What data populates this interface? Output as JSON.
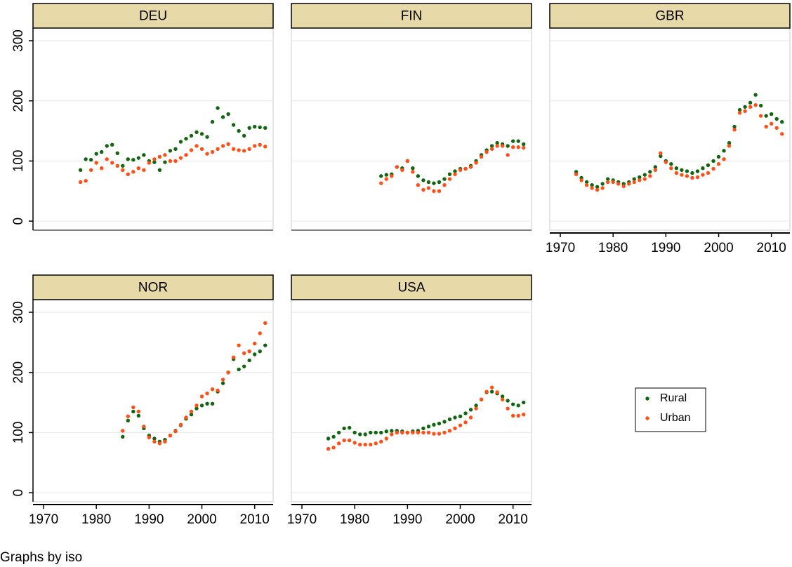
{
  "chart_data": [
    {
      "type": "scatter",
      "title": "DEU",
      "xlim": [
        1968,
        2013.5
      ],
      "ylim": [
        -15,
        321
      ],
      "xticks": [
        1970,
        1980,
        1990,
        2000,
        2010
      ],
      "yticks": [
        0,
        100,
        200,
        300
      ],
      "grid": true,
      "x": [
        1977,
        1978,
        1979,
        1980,
        1981,
        1982,
        1983,
        1984,
        1985,
        1986,
        1987,
        1988,
        1989,
        1990,
        1991,
        1992,
        1993,
        1994,
        1995,
        1996,
        1997,
        1998,
        1999,
        2000,
        2001,
        2002,
        2003,
        2004,
        2005,
        2006,
        2007,
        2008,
        2009,
        2010,
        2011,
        2012
      ],
      "series": [
        {
          "name": "Rural",
          "color": "#126612",
          "values": [
            85,
            103,
            102,
            112,
            115,
            125,
            127,
            113,
            92,
            103,
            102,
            105,
            110,
            100,
            98,
            85,
            98,
            117,
            120,
            132,
            137,
            142,
            148,
            145,
            140,
            165,
            188,
            173,
            178,
            160,
            150,
            142,
            155,
            157,
            156,
            155
          ]
        },
        {
          "name": "Urban",
          "color": "#ff4f14",
          "values": [
            65,
            67,
            85,
            97,
            88,
            103,
            97,
            92,
            85,
            78,
            82,
            88,
            85,
            97,
            103,
            107,
            110,
            100,
            100,
            105,
            110,
            118,
            125,
            120,
            112,
            115,
            120,
            125,
            128,
            120,
            118,
            117,
            120,
            125,
            127,
            124
          ]
        }
      ]
    },
    {
      "type": "scatter",
      "title": "FIN",
      "xlim": [
        1968,
        2013.5
      ],
      "ylim": [
        -15,
        321
      ],
      "xticks": [
        1970,
        1980,
        1990,
        2000,
        2010
      ],
      "yticks": [
        0,
        100,
        200,
        300
      ],
      "grid": true,
      "x": [
        1985,
        1986,
        1987,
        1988,
        1989,
        1990,
        1991,
        1992,
        1993,
        1994,
        1995,
        1996,
        1997,
        1998,
        1999,
        2000,
        2001,
        2002,
        2003,
        2004,
        2005,
        2006,
        2007,
        2008,
        2009,
        2010,
        2011,
        2012
      ],
      "series": [
        {
          "name": "Rural",
          "color": "#126612",
          "values": [
            75,
            77,
            78,
            90,
            88,
            100,
            88,
            75,
            68,
            65,
            63,
            65,
            70,
            78,
            83,
            87,
            87,
            92,
            100,
            110,
            118,
            125,
            130,
            128,
            125,
            133,
            133,
            128
          ]
        },
        {
          "name": "Urban",
          "color": "#ff4f14",
          "values": [
            63,
            70,
            75,
            90,
            85,
            100,
            82,
            60,
            52,
            55,
            50,
            50,
            60,
            70,
            78,
            85,
            87,
            90,
            97,
            107,
            115,
            120,
            125,
            125,
            110,
            123,
            123,
            122
          ]
        }
      ]
    },
    {
      "type": "scatter",
      "title": "GBR",
      "xlim": [
        1968,
        2013.5
      ],
      "ylim": [
        -15,
        321
      ],
      "xticks": [
        1970,
        1980,
        1990,
        2000,
        2010
      ],
      "yticks": [
        0,
        100,
        200,
        300
      ],
      "grid": true,
      "x": [
        1973,
        1974,
        1975,
        1976,
        1977,
        1978,
        1979,
        1980,
        1981,
        1982,
        1983,
        1984,
        1985,
        1986,
        1987,
        1988,
        1989,
        1990,
        1991,
        1992,
        1993,
        1994,
        1995,
        1996,
        1997,
        1998,
        1999,
        2000,
        2001,
        2002,
        2003,
        2004,
        2005,
        2006,
        2007,
        2008,
        2009,
        2010,
        2011,
        2012
      ],
      "series": [
        {
          "name": "Rural",
          "color": "#126612",
          "values": [
            82,
            72,
            65,
            60,
            57,
            62,
            70,
            68,
            65,
            62,
            65,
            70,
            73,
            77,
            82,
            90,
            108,
            100,
            95,
            88,
            85,
            83,
            80,
            83,
            88,
            93,
            100,
            107,
            117,
            130,
            157,
            185,
            190,
            197,
            210,
            192,
            175,
            178,
            170,
            165
          ]
        },
        {
          "name": "Urban",
          "color": "#ff4f14",
          "values": [
            78,
            68,
            60,
            55,
            52,
            55,
            65,
            65,
            62,
            58,
            62,
            65,
            68,
            70,
            75,
            85,
            113,
            98,
            88,
            80,
            77,
            75,
            72,
            73,
            77,
            80,
            87,
            95,
            103,
            125,
            152,
            180,
            183,
            190,
            193,
            175,
            157,
            162,
            155,
            145
          ]
        }
      ]
    },
    {
      "type": "scatter",
      "title": "NOR",
      "xlim": [
        1968,
        2013.5
      ],
      "ylim": [
        -15,
        321
      ],
      "xticks": [
        1970,
        1980,
        1990,
        2000,
        2010
      ],
      "yticks": [
        0,
        100,
        200,
        300
      ],
      "grid": true,
      "x": [
        1985,
        1986,
        1987,
        1988,
        1989,
        1990,
        1991,
        1992,
        1993,
        1994,
        1995,
        1996,
        1997,
        1998,
        1999,
        2000,
        2001,
        2002,
        2003,
        2004,
        2005,
        2006,
        2007,
        2008,
        2009,
        2010,
        2011,
        2012
      ],
      "series": [
        {
          "name": "Rural",
          "color": "#126612",
          "values": [
            93,
            120,
            135,
            128,
            107,
            95,
            90,
            85,
            88,
            95,
            103,
            112,
            123,
            130,
            140,
            145,
            148,
            148,
            168,
            182,
            200,
            222,
            205,
            210,
            220,
            230,
            235,
            245
          ]
        },
        {
          "name": "Urban",
          "color": "#ff4f14",
          "values": [
            103,
            127,
            142,
            135,
            110,
            92,
            85,
            82,
            85,
            95,
            102,
            113,
            125,
            135,
            145,
            160,
            165,
            172,
            170,
            188,
            200,
            225,
            245,
            232,
            235,
            248,
            265,
            282
          ]
        }
      ]
    },
    {
      "type": "scatter",
      "title": "USA",
      "xlim": [
        1968,
        2013.5
      ],
      "ylim": [
        -15,
        321
      ],
      "xticks": [
        1970,
        1980,
        1990,
        2000,
        2010
      ],
      "yticks": [
        0,
        100,
        200,
        300
      ],
      "grid": true,
      "x": [
        1975,
        1976,
        1977,
        1978,
        1979,
        1980,
        1981,
        1982,
        1983,
        1984,
        1985,
        1986,
        1987,
        1988,
        1989,
        1990,
        1991,
        1992,
        1993,
        1994,
        1995,
        1996,
        1997,
        1998,
        1999,
        2000,
        2001,
        2002,
        2003,
        2004,
        2005,
        2006,
        2007,
        2008,
        2009,
        2010,
        2011,
        2012
      ],
      "series": [
        {
          "name": "Rural",
          "color": "#126612",
          "values": [
            90,
            93,
            100,
            107,
            108,
            100,
            97,
            97,
            100,
            100,
            100,
            102,
            103,
            103,
            102,
            100,
            102,
            103,
            107,
            110,
            113,
            115,
            118,
            122,
            125,
            127,
            132,
            138,
            145,
            155,
            167,
            168,
            165,
            160,
            153,
            147,
            145,
            150
          ]
        },
        {
          "name": "Urban",
          "color": "#ff4f14",
          "values": [
            73,
            75,
            82,
            87,
            87,
            83,
            80,
            80,
            80,
            82,
            85,
            90,
            97,
            100,
            100,
            100,
            100,
            100,
            100,
            100,
            98,
            98,
            100,
            103,
            107,
            112,
            117,
            125,
            140,
            155,
            168,
            175,
            167,
            155,
            140,
            128,
            128,
            130
          ]
        }
      ]
    }
  ],
  "note": "Graphs by iso"
}
